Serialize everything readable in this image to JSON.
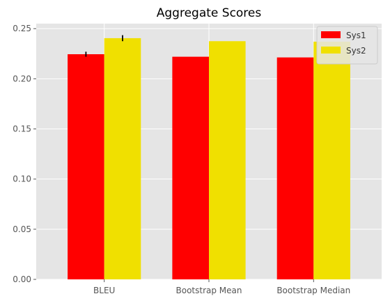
{
  "chart_data": {
    "type": "bar",
    "title": "Aggregate Scores",
    "xlabel": "",
    "ylabel": "",
    "categories": [
      "BLEU",
      "Bootstrap Mean",
      "Bootstrap Median"
    ],
    "series": [
      {
        "name": "Sys1",
        "color": "#ff0000",
        "values": [
          0.2245,
          0.222,
          0.2213
        ],
        "errors": [
          0.0025,
          null,
          null
        ]
      },
      {
        "name": "Sys2",
        "color": "#f0e000",
        "values": [
          0.2405,
          0.2375,
          0.237
        ],
        "errors": [
          0.003,
          null,
          null
        ]
      }
    ],
    "ylim": [
      0,
      0.255
    ],
    "yticks": [
      0.0,
      0.05,
      0.1,
      0.15,
      0.2,
      0.25
    ],
    "ytick_labels": [
      "0.00",
      "0.05",
      "0.10",
      "0.15",
      "0.20",
      "0.25"
    ],
    "grid": true,
    "legend_position": "top-right",
    "style": {
      "background": "#e5e5e5",
      "grid_color": "#ffffff",
      "error_color": "#000000"
    }
  }
}
